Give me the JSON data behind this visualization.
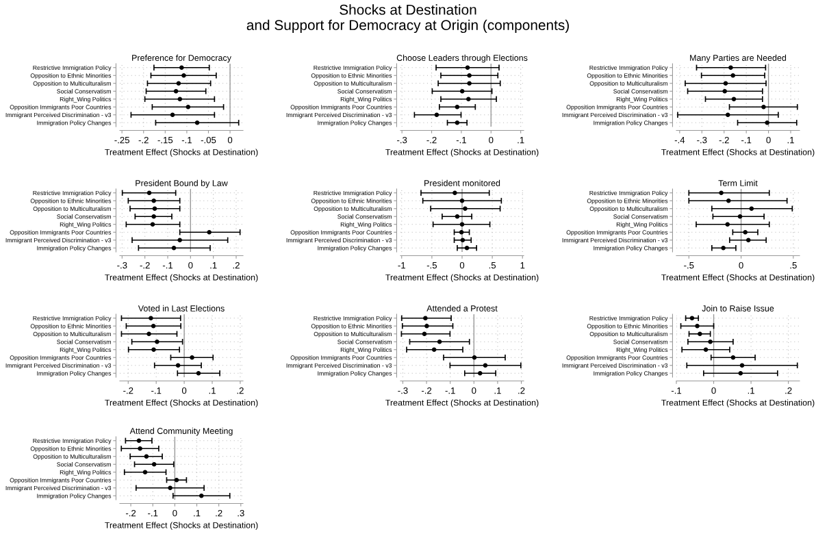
{
  "chart_data": [
    {
      "type": "scatter",
      "orientation": "horizontal",
      "title": "Preference for Democracy",
      "xlabel": "Treatment Effect (Shocks at Destination)",
      "annotations": [
        "Shocks at Destination\nand Support for Democracy at Origin (components)"
      ],
      "categories": [
        "Restrictive Immigration Policy",
        "Opposition to Ethnic Minorities",
        "Opposition to Multiculturalism",
        "Social Conservatism",
        "Right_Wing Politics",
        "Opposition Immigrants Poor Countries",
        "Immigrant Perceived Discrimination - v3",
        "Immigration Policy Changes"
      ],
      "color": "#000000",
      "marker": "circle",
      "grid": true,
      "values": [
        -0.112,
        -0.107,
        -0.119,
        -0.125,
        -0.116,
        -0.097,
        -0.133,
        -0.076
      ],
      "errors": [
        [
          -0.176,
          -0.048
        ],
        [
          -0.183,
          -0.032
        ],
        [
          -0.191,
          -0.045
        ],
        [
          -0.194,
          -0.056
        ],
        [
          -0.197,
          -0.036
        ],
        [
          -0.18,
          -0.015
        ],
        [
          -0.229,
          -0.036
        ],
        [
          -0.172,
          0.02
        ]
      ],
      "xlim": [
        -0.255,
        0.03
      ],
      "xticks": [
        {
          "value": -0.25,
          "label": "-.25"
        },
        {
          "value": -0.2,
          "label": "-.2"
        },
        {
          "value": -0.15,
          "label": "-.15"
        },
        {
          "value": -0.1,
          "label": "-.1"
        },
        {
          "value": -0.05,
          "label": "-.05"
        },
        0
      ],
      "ref_lines": [
        {
          "axis": "x",
          "value": 0,
          "color": "#999999"
        }
      ]
    },
    {
      "type": "scatter",
      "orientation": "horizontal",
      "title": "Choose Leaders through Elections",
      "xlabel": "Treatment Effect (Shocks at Destination)",
      "categories": [
        "Restrictive Immigration Policy",
        "Opposition to Ethnic Minorities",
        "Opposition to Multiculturalism",
        "Social Conservatism",
        "Right_Wing Politics",
        "Opposition Immigrants Poor Countries",
        "Immigrant Perceived Discrimination - v3",
        "Immigration Policy Changes"
      ],
      "color": "#000000",
      "marker": "circle",
      "grid": true,
      "values": [
        -0.079,
        -0.073,
        -0.073,
        -0.097,
        -0.076,
        -0.114,
        -0.183,
        -0.114
      ],
      "errors": [
        [
          -0.185,
          0.027
        ],
        [
          -0.169,
          0.023
        ],
        [
          -0.178,
          0.031
        ],
        [
          -0.198,
          0.003
        ],
        [
          -0.169,
          0.018
        ],
        [
          -0.174,
          -0.053
        ],
        [
          -0.258,
          -0.101
        ],
        [
          -0.147,
          -0.081
        ]
      ],
      "xlim": [
        -0.305,
        0.11
      ],
      "xticks": [
        {
          "value": -0.3,
          "label": "-.3"
        },
        {
          "value": -0.2,
          "label": "-.2"
        },
        {
          "value": -0.1,
          "label": "-.1"
        },
        0,
        {
          "value": 0.1,
          "label": ".1"
        }
      ],
      "ref_lines": [
        {
          "axis": "x",
          "value": 0,
          "color": "#999999"
        }
      ]
    },
    {
      "type": "scatter",
      "orientation": "horizontal",
      "title": "Many Parties are Needed",
      "xlabel": "Treatment Effect (Shocks at Destination)",
      "categories": [
        "Restrictive Immigration Policy",
        "Opposition to Ethnic Minorities",
        "Opposition to Multiculturalism",
        "Social Conservatism",
        "Right_Wing Politics",
        "Opposition Immigrants Poor Countries",
        "Immigrant Perceived Discrimination - v3",
        "Immigration Policy Changes"
      ],
      "color": "#000000",
      "marker": "circle",
      "grid": true,
      "values": [
        -0.17,
        -0.16,
        -0.193,
        -0.197,
        -0.156,
        -0.022,
        -0.183,
        -0.006
      ],
      "errors": [
        [
          -0.324,
          -0.013
        ],
        [
          -0.302,
          -0.017
        ],
        [
          -0.375,
          -0.011
        ],
        [
          -0.364,
          -0.027
        ],
        [
          -0.284,
          -0.027
        ],
        [
          -0.176,
          0.13
        ],
        [
          -0.409,
          0.044
        ],
        [
          -0.139,
          0.127
        ]
      ],
      "xlim": [
        -0.415,
        0.14
      ],
      "xticks": [
        {
          "value": -0.4,
          "label": "-.4"
        },
        {
          "value": -0.3,
          "label": "-.3"
        },
        {
          "value": -0.2,
          "label": "-.2"
        },
        {
          "value": -0.1,
          "label": "-.1"
        },
        0,
        {
          "value": 0.1,
          "label": ".1"
        }
      ],
      "ref_lines": [
        {
          "axis": "x",
          "value": 0,
          "color": "#999999"
        }
      ]
    },
    {
      "type": "scatter",
      "orientation": "horizontal",
      "title": "President Bound by Law",
      "xlabel": "Treatment Effect (Shocks at Destination)",
      "categories": [
        "Restrictive Immigration Policy",
        "Opposition to Ethnic Minorities",
        "Opposition to Multiculturalism",
        "Social Conservatism",
        "Right_Wing Politics",
        "Opposition Immigrants Poor Countries",
        "Immigrant Perceived Discrimination - v3",
        "Immigration Policy Changes"
      ],
      "color": "#000000",
      "marker": "circle",
      "grid": true,
      "values": [
        -0.181,
        -0.161,
        -0.157,
        -0.161,
        -0.166,
        0.082,
        -0.047,
        -0.073
      ],
      "errors": [
        [
          -0.299,
          -0.065
        ],
        [
          -0.273,
          -0.047
        ],
        [
          -0.265,
          -0.047
        ],
        [
          -0.243,
          -0.082
        ],
        [
          -0.282,
          -0.047
        ],
        [
          -0.047,
          0.217
        ],
        [
          -0.256,
          0.163
        ],
        [
          -0.228,
          0.086
        ]
      ],
      "xlim": [
        -0.31,
        0.23
      ],
      "xticks": [
        {
          "value": -0.3,
          "label": "-.3"
        },
        {
          "value": -0.2,
          "label": "-.2"
        },
        {
          "value": -0.1,
          "label": "-.1"
        },
        0,
        {
          "value": 0.1,
          "label": ".1"
        },
        {
          "value": 0.2,
          "label": ".2"
        }
      ],
      "ref_lines": [
        {
          "axis": "x",
          "value": 0,
          "color": "#999999"
        }
      ]
    },
    {
      "type": "scatter",
      "orientation": "horizontal",
      "title": "President monitored",
      "xlabel": "Treatment Effect (Shocks at Destination)",
      "categories": [
        "Restrictive Immigration Policy",
        "Opposition to Ethnic Minorities",
        "Opposition to Multiculturalism",
        "Social Conservatism",
        "Right_Wing Politics",
        "Opposition Immigrants Poor Countries",
        "Immigrant Perceived Discrimination - v3",
        "Immigration Policy Changes"
      ],
      "color": "#000000",
      "marker": "circle",
      "grid": true,
      "values": [
        -0.12,
        0.0,
        0.05,
        -0.08,
        0.0,
        -0.01,
        0.01,
        0.08
      ],
      "errors": [
        [
          -0.68,
          0.45
        ],
        [
          -0.65,
          0.65
        ],
        [
          -0.52,
          0.63
        ],
        [
          -0.33,
          0.16
        ],
        [
          -0.48,
          0.46
        ],
        [
          -0.13,
          0.12
        ],
        [
          -0.13,
          0.15
        ],
        [
          -0.08,
          0.24
        ]
      ],
      "xlim": [
        -1.02,
        1.02
      ],
      "xticks": [
        -1,
        {
          "value": -0.5,
          "label": "-.5"
        },
        0,
        {
          "value": 0.5,
          "label": ".5"
        },
        1
      ],
      "ref_lines": [
        {
          "axis": "x",
          "value": 0,
          "color": "#999999"
        }
      ]
    },
    {
      "type": "scatter",
      "orientation": "horizontal",
      "title": "Term Limit",
      "xlabel": "Treatment Effect (Shocks at Destination)",
      "categories": [
        "Restrictive Immigration Policy",
        "Opposition to Ethnic Minorities",
        "Opposition to Multiculturalism",
        "Social Conservatism",
        "Right_Wing Politics",
        "Opposition Immigrants Poor Countries",
        "Immigrant Perceived Discrimination - v3",
        "Immigration Policy Changes"
      ],
      "color": "#000000",
      "marker": "circle",
      "grid": true,
      "values": [
        -0.19,
        -0.12,
        0.1,
        -0.01,
        -0.13,
        0.04,
        0.07,
        -0.17
      ],
      "errors": [
        [
          -0.5,
          0.27
        ],
        [
          -0.5,
          0.44
        ],
        [
          -0.28,
          0.49
        ],
        [
          -0.27,
          0.22
        ],
        [
          -0.43,
          0.27
        ],
        [
          -0.08,
          0.16
        ],
        [
          -0.11,
          0.24
        ],
        [
          -0.28,
          -0.05
        ]
      ],
      "xlim": [
        -0.62,
        0.56
      ],
      "xticks": [
        {
          "value": -0.5,
          "label": "-.5"
        },
        0,
        {
          "value": 0.5,
          "label": ".5"
        }
      ],
      "ref_lines": [
        {
          "axis": "x",
          "value": 0,
          "color": "#999999"
        }
      ]
    },
    {
      "type": "scatter",
      "orientation": "horizontal",
      "title": "Voted in Last Elections",
      "xlabel": "Treatment Effect (Shocks at Destination)",
      "categories": [
        "Restrictive Immigration Policy",
        "Opposition to Ethnic Minorities",
        "Opposition to Multiculturalism",
        "Social Conservatism",
        "Right_Wing Politics",
        "Opposition Immigrants Poor Countries",
        "Immigrant Perceived Discrimination - v3",
        "Immigration Policy Changes"
      ],
      "color": "#000000",
      "marker": "circle",
      "grid": true,
      "values": [
        -0.119,
        -0.11,
        -0.126,
        -0.097,
        -0.109,
        0.028,
        -0.022,
        0.051
      ],
      "errors": [
        [
          -0.224,
          -0.013
        ],
        [
          -0.207,
          -0.012
        ],
        [
          -0.224,
          -0.026
        ],
        [
          -0.187,
          -0.006
        ],
        [
          -0.199,
          -0.017
        ],
        [
          -0.048,
          0.103
        ],
        [
          -0.106,
          0.061
        ],
        [
          -0.024,
          0.127
        ]
      ],
      "xlim": [
        -0.23,
        0.21
      ],
      "xticks": [
        {
          "value": -0.2,
          "label": "-.2"
        },
        {
          "value": -0.1,
          "label": "-.1"
        },
        0,
        {
          "value": 0.1,
          "label": ".1"
        },
        {
          "value": 0.2,
          "label": ".2"
        }
      ],
      "ref_lines": [
        {
          "axis": "x",
          "value": 0,
          "color": "#999999"
        }
      ]
    },
    {
      "type": "scatter",
      "orientation": "horizontal",
      "title": "Attended a Protest",
      "xlabel": "Treatment Effect (Shocks at Destination)",
      "categories": [
        "Restrictive Immigration Policy",
        "Opposition to Ethnic Minorities",
        "Opposition to Multiculturalism",
        "Social Conservatism",
        "Right_Wing Politics",
        "Opposition Immigrants Poor Countries",
        "Immigrant Perceived Discrimination - v3",
        "Immigration Policy Changes"
      ],
      "color": "#000000",
      "marker": "circle",
      "grid": true,
      "values": [
        -0.205,
        -0.199,
        -0.209,
        -0.145,
        -0.168,
        0.002,
        0.048,
        0.026
      ],
      "errors": [
        [
          -0.305,
          -0.096
        ],
        [
          -0.302,
          -0.089
        ],
        [
          -0.306,
          -0.101
        ],
        [
          -0.271,
          -0.019
        ],
        [
          -0.284,
          -0.047
        ],
        [
          -0.128,
          0.132
        ],
        [
          -0.101,
          0.198
        ],
        [
          -0.039,
          0.092
        ]
      ],
      "xlim": [
        -0.31,
        0.21
      ],
      "xticks": [
        {
          "value": -0.3,
          "label": "-.3"
        },
        {
          "value": -0.2,
          "label": "-.2"
        },
        {
          "value": -0.1,
          "label": "-.1"
        },
        0,
        {
          "value": 0.1,
          "label": ".1"
        },
        {
          "value": 0.2,
          "label": ".2"
        }
      ],
      "ref_lines": [
        {
          "axis": "x",
          "value": 0,
          "color": "#999999"
        }
      ]
    },
    {
      "type": "scatter",
      "orientation": "horizontal",
      "title": "Join to Raise Issue",
      "xlabel": "Treatment Effect (Shocks at Destination)",
      "categories": [
        "Restrictive Immigration Policy",
        "Opposition to Ethnic Minorities",
        "Opposition to Multiculturalism",
        "Social Conservatism",
        "Right_Wing Politics",
        "Opposition Immigrants Poor Countries",
        "Immigrant Perceived Discrimination - v3",
        "Immigration Policy Changes"
      ],
      "color": "#000000",
      "marker": "circle",
      "grid": true,
      "values": [
        -0.058,
        -0.044,
        -0.037,
        -0.009,
        -0.021,
        0.052,
        0.076,
        0.072
      ],
      "errors": [
        [
          -0.075,
          -0.041
        ],
        [
          -0.088,
          0.0
        ],
        [
          -0.066,
          -0.009
        ],
        [
          -0.069,
          0.052
        ],
        [
          -0.085,
          0.043
        ],
        [
          -0.007,
          0.111
        ],
        [
          -0.072,
          0.224
        ],
        [
          -0.027,
          0.171
        ]
      ],
      "xlim": [
        -0.1,
        0.23
      ],
      "xticks": [
        {
          "value": -0.1,
          "label": "-.1"
        },
        0,
        {
          "value": 0.1,
          "label": ".1"
        },
        {
          "value": 0.2,
          "label": ".2"
        }
      ],
      "ref_lines": [
        {
          "axis": "x",
          "value": 0,
          "color": "#999999"
        }
      ]
    },
    {
      "type": "scatter",
      "orientation": "horizontal",
      "title": "Attend Community Meeting",
      "xlabel": "Treatment Effect (Shocks at Destination)",
      "categories": [
        "Restrictive Immigration Policy",
        "Opposition to Ethnic Minorities",
        "Opposition to Multiculturalism",
        "Social Conservatism",
        "Right_Wing Politics",
        "Opposition Immigrants Poor Countries",
        "Immigrant Perceived Discrimination - v3",
        "Immigration Policy Changes"
      ],
      "color": "#000000",
      "marker": "circle",
      "grid": true,
      "values": [
        -0.163,
        -0.158,
        -0.129,
        -0.094,
        -0.135,
        0.008,
        -0.021,
        0.121
      ],
      "errors": [
        [
          -0.224,
          -0.104
        ],
        [
          -0.243,
          -0.073
        ],
        [
          -0.203,
          -0.057
        ],
        [
          -0.183,
          -0.005
        ],
        [
          -0.229,
          -0.04
        ],
        [
          -0.037,
          0.053
        ],
        [
          -0.176,
          0.133
        ],
        [
          -0.008,
          0.25
        ]
      ],
      "xlim": [
        -0.25,
        0.31
      ],
      "xticks": [
        {
          "value": -0.2,
          "label": "-.2"
        },
        {
          "value": -0.1,
          "label": "-.1"
        },
        0,
        {
          "value": 0.1,
          "label": ".1"
        },
        {
          "value": 0.2,
          "label": ".2"
        },
        {
          "value": 0.3,
          "label": ".3"
        }
      ],
      "ref_lines": [
        {
          "axis": "x",
          "value": 0,
          "color": "#999999"
        }
      ]
    }
  ]
}
